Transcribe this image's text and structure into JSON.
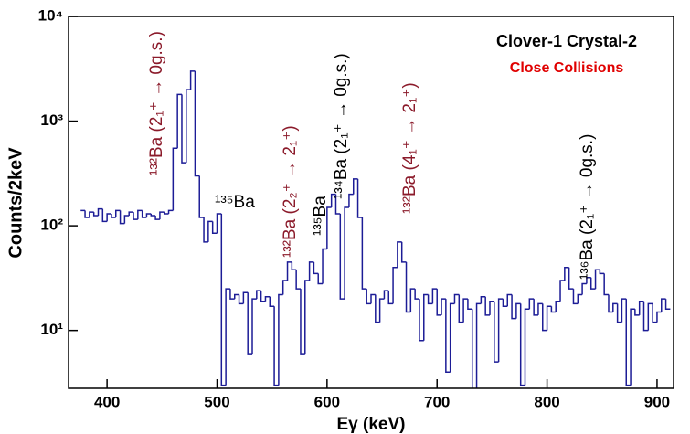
{
  "chart_data": {
    "type": "histogram",
    "xlabel": "Eγ (keV)",
    "ylabel": "Counts/2keV",
    "color": "#1c1c96",
    "log_y": true,
    "xlim": [
      365,
      915
    ],
    "xticks": [
      400,
      500,
      600,
      700,
      800,
      900
    ],
    "ylim": [
      2.8,
      10000
    ],
    "yticks": [
      {
        "value": 10,
        "label": "10¹"
      },
      {
        "value": 100,
        "label": "10²"
      },
      {
        "value": 1000,
        "label": "10³"
      },
      {
        "value": 10000,
        "label": "10⁴"
      }
    ],
    "bins": [
      376,
      380,
      384,
      388,
      392,
      396,
      400,
      404,
      408,
      412,
      416,
      420,
      424,
      428,
      432,
      436,
      440,
      444,
      448,
      452,
      456,
      460,
      464,
      468,
      472,
      476,
      480,
      484,
      488,
      492,
      496,
      500,
      504,
      508,
      512,
      516,
      520,
      524,
      528,
      532,
      536,
      540,
      544,
      548,
      552,
      556,
      560,
      564,
      568,
      572,
      576,
      580,
      584,
      588,
      592,
      596,
      600,
      604,
      608,
      612,
      616,
      620,
      624,
      628,
      632,
      636,
      640,
      644,
      648,
      652,
      656,
      660,
      664,
      668,
      672,
      676,
      680,
      684,
      688,
      692,
      696,
      700,
      704,
      708,
      712,
      716,
      720,
      724,
      728,
      732,
      736,
      740,
      744,
      748,
      752,
      756,
      760,
      764,
      768,
      772,
      776,
      780,
      784,
      788,
      792,
      796,
      800,
      804,
      808,
      812,
      816,
      820,
      824,
      828,
      832,
      836,
      840,
      844,
      848,
      852,
      856,
      860,
      864,
      868,
      872,
      876,
      880,
      884,
      888,
      892,
      896,
      900,
      904,
      908,
      912
    ],
    "values": [
      140,
      120,
      135,
      125,
      145,
      110,
      130,
      120,
      140,
      105,
      125,
      135,
      115,
      140,
      120,
      130,
      125,
      115,
      135,
      130,
      140,
      550,
      1800,
      400,
      2000,
      3000,
      300,
      120,
      70,
      110,
      85,
      130,
      3,
      25,
      20,
      22,
      18,
      23,
      6,
      20,
      24,
      19,
      21,
      17,
      3,
      22,
      30,
      45,
      38,
      25,
      6,
      30,
      45,
      35,
      28,
      60,
      150,
      200,
      130,
      20,
      150,
      200,
      280,
      120,
      25,
      18,
      22,
      12,
      20,
      24,
      18,
      40,
      70,
      45,
      15,
      25,
      20,
      8,
      22,
      18,
      25,
      14,
      20,
      4,
      18,
      22,
      12,
      20,
      16,
      2,
      18,
      21,
      14,
      19,
      5,
      20,
      17,
      22,
      13,
      18,
      3,
      16,
      20,
      14,
      18,
      10,
      17,
      15,
      19,
      30,
      40,
      25,
      18,
      22,
      28,
      32,
      25,
      38,
      35,
      22,
      15,
      18,
      12,
      20,
      3,
      16,
      14,
      19,
      10,
      18,
      12,
      15,
      20,
      16
    ],
    "annotations": [
      {
        "text": "¹³²Ba (2₁⁺ → 0g.s.)",
        "color": "#8b1a2a"
      },
      {
        "text": "¹³⁵Ba",
        "color": "#000000"
      },
      {
        "text": "¹³²Ba (2₂⁺ → 2₁⁺)",
        "color": "#8b1a2a"
      },
      {
        "text": "¹³⁵Ba",
        "color": "#000000"
      },
      {
        "text": "¹³⁴Ba (2₁⁺ → 0g.s.)",
        "color": "#000000"
      },
      {
        "text": "¹³²Ba (4₁⁺ → 2₁⁺)",
        "color": "#8b1a2a"
      },
      {
        "text": "¹³⁶Ba (2₁⁺ → 0g.s.)",
        "color": "#000000"
      }
    ],
    "labels": [
      {
        "text": "Clover-1 Crystal-2",
        "color": "#000000"
      },
      {
        "text": "Close Collisions",
        "color": "#e00000"
      }
    ]
  }
}
